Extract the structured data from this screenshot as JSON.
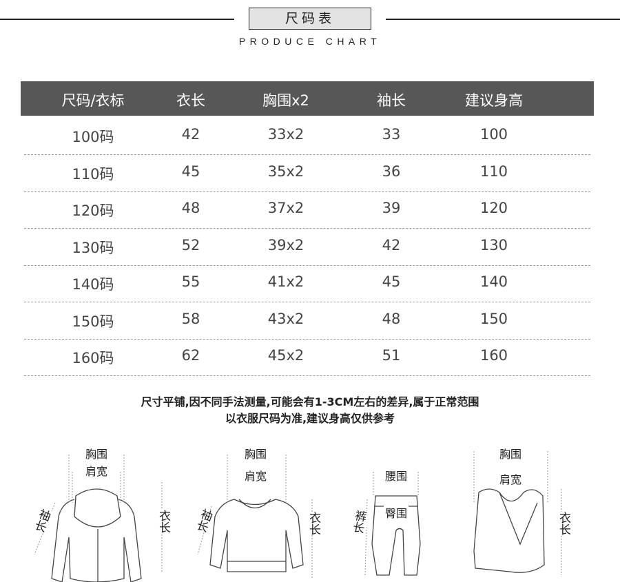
{
  "header": {
    "title": "尺码表",
    "subtitle": "PRODUCE CHART"
  },
  "table": {
    "columns": [
      "尺码/衣标",
      "衣长",
      "胸围x2",
      "袖长",
      "建议身高"
    ],
    "rows": [
      [
        "100码",
        "42",
        "33x2",
        "33",
        "100"
      ],
      [
        "110码",
        "45",
        "35x2",
        "36",
        "110"
      ],
      [
        "120码",
        "48",
        "37x2",
        "39",
        "120"
      ],
      [
        "130码",
        "52",
        "39x2",
        "42",
        "130"
      ],
      [
        "140码",
        "55",
        "41x2",
        "45",
        "140"
      ],
      [
        "150码",
        "58",
        "43x2",
        "48",
        "150"
      ],
      [
        "160码",
        "62",
        "45x2",
        "51",
        "160"
      ]
    ]
  },
  "notes": [
    "尺寸平铺,因不同手法测量,可能会有1-3CM左右的差异,属于正常范围",
    "以衣服尺码为准,建议身高仅供参考"
  ],
  "illustrations": {
    "jacket": {
      "chest": "胸围",
      "shoulder": "肩宽",
      "sleeve": "袖长",
      "length": "衣长"
    },
    "sweater": {
      "chest": "胸围",
      "shoulder": "肩宽",
      "sleeve": "袖长",
      "length": "衣长"
    },
    "pants": {
      "waist": "腰围",
      "hip": "臀围",
      "pants_length": "裤长"
    },
    "vest": {
      "chest": "胸围",
      "shoulder": "肩宽",
      "length": "衣长"
    }
  },
  "colors": {
    "header_bg": "#575757",
    "title_box_bg": "#e3e3e3"
  }
}
